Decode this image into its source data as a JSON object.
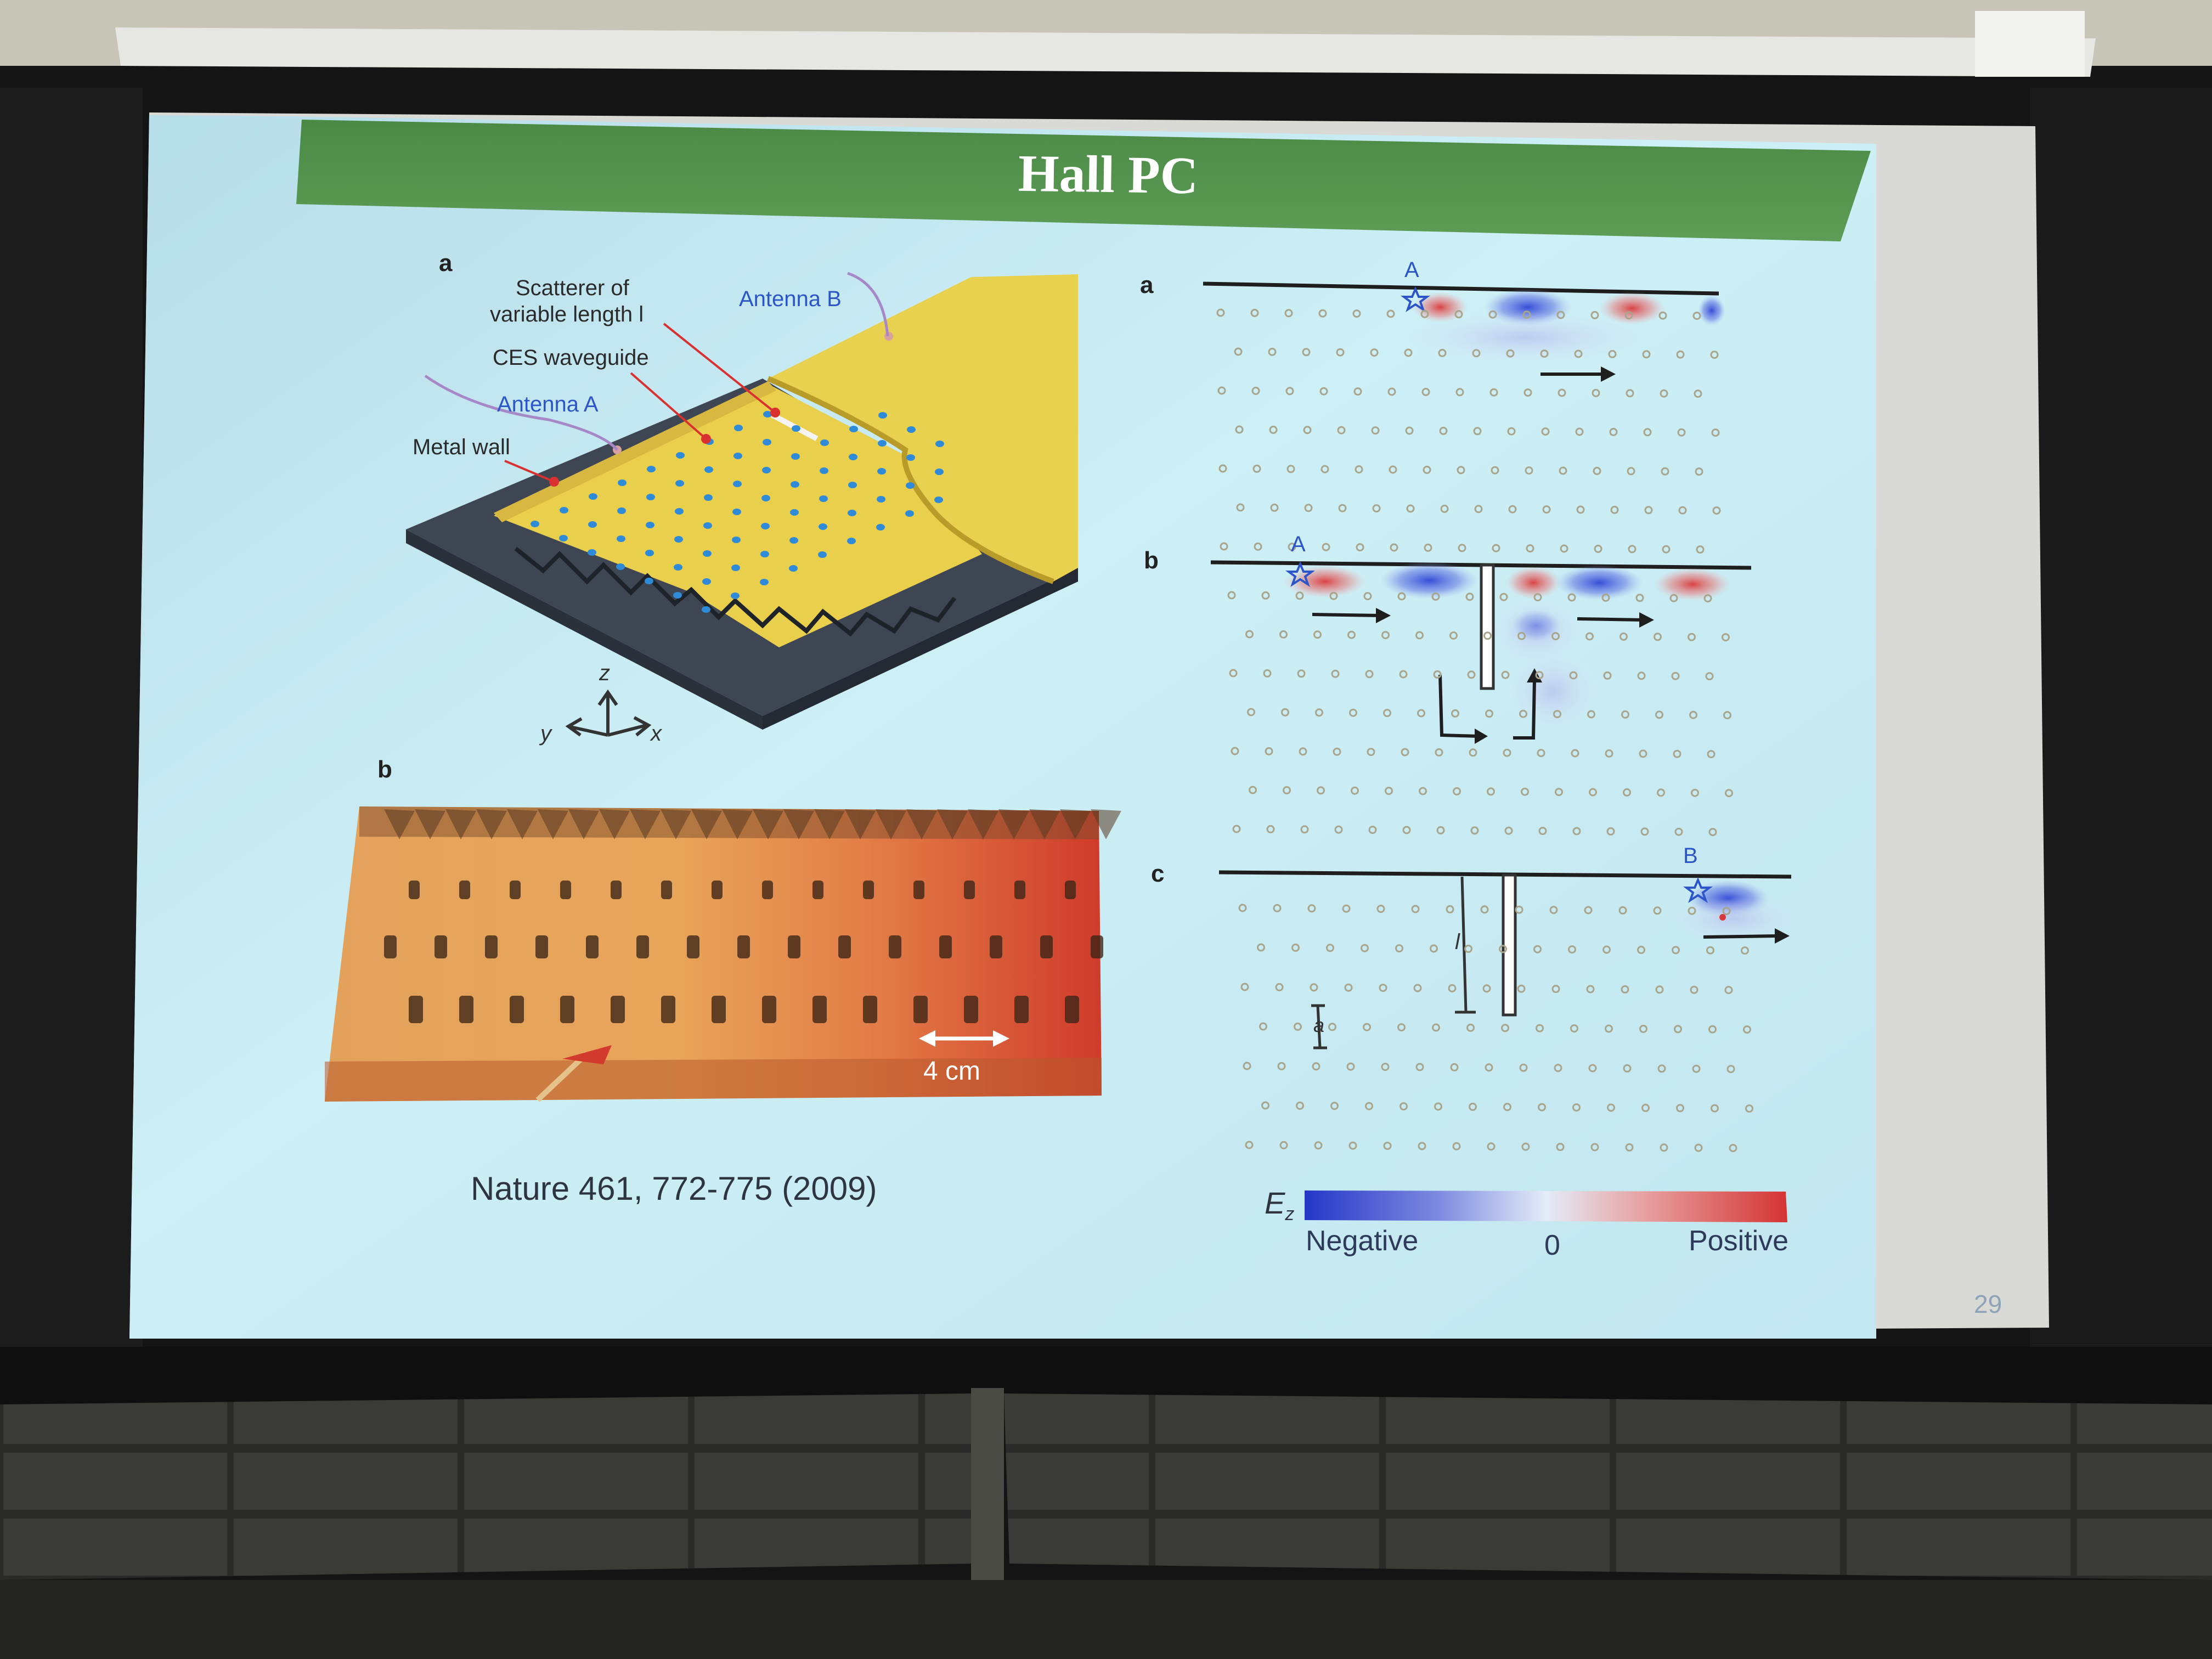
{
  "slide": {
    "title": "Hall PC",
    "citation": "Nature 461, 772-775 (2009)",
    "page_number": "29"
  },
  "left_figure": {
    "panel_a": "a",
    "panel_b": "b",
    "labels": {
      "scatterer_line1": "Scatterer of",
      "scatterer_line2": "variable length l",
      "antenna_b": "Antenna B",
      "ces_waveguide": "CES waveguide",
      "antenna_a": "Antenna A",
      "metal_wall": "Metal wall"
    },
    "axes": {
      "z": "z",
      "y": "y",
      "x": "x"
    },
    "photo_scale": "4 cm"
  },
  "right_figure": {
    "panel_a": "a",
    "panel_b": "b",
    "panel_c": "c",
    "marker_a1": "A",
    "marker_a2": "A",
    "marker_b": "B",
    "length_label": "l",
    "lattice_label": "a",
    "colorbar": {
      "symbol": "E",
      "subscript": "z",
      "negative": "Negative",
      "zero": "0",
      "positive": "Positive",
      "negative_color": "#2b3fd0",
      "positive_color": "#d83a3a"
    }
  },
  "colors": {
    "title_bar": "#4f8e4a",
    "slide_background": "#c9ecf4",
    "gold_plate": "#e9cf4c",
    "base_plate": "#3d4652"
  }
}
